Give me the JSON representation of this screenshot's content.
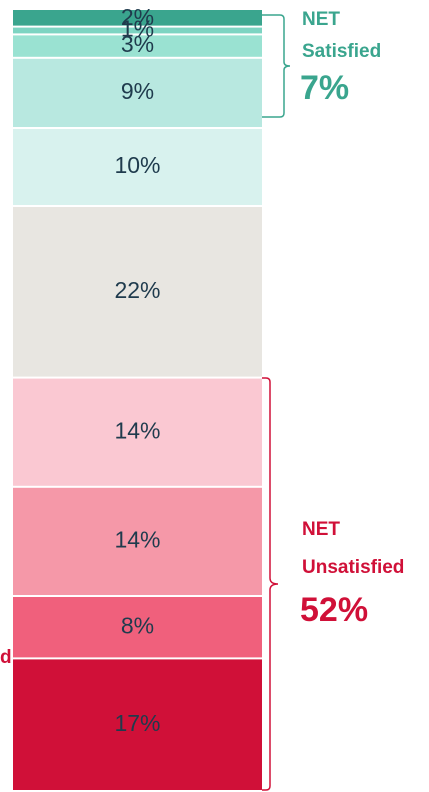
{
  "chart_data": {
    "type": "stacked_bar",
    "categories": [
      "17%",
      "8%",
      "14%",
      "14%",
      "22%",
      "10%",
      "9%",
      "3%",
      "1%",
      "2%"
    ],
    "values": [
      17,
      8,
      14,
      14,
      22,
      10,
      9,
      3,
      1,
      2
    ],
    "value_labels": [
      "17%",
      "8%",
      "14%",
      "14%",
      "22%",
      "10%",
      "9%",
      "3%",
      "1%",
      "2%"
    ],
    "colors": [
      "#d01038",
      "#f0607c",
      "#f598a8",
      "#fac8d2",
      "#e8e6e1",
      "#d8f2ee",
      "#b8e8e0",
      "#9ae2d2",
      "#7dd4c2",
      "#3aa58e"
    ],
    "annotations": {
      "satisfied": {
        "heading": "NET",
        "name": "Satisfied",
        "value": "7%",
        "color": "#3aa58e"
      },
      "unsatisfied": {
        "heading": "NET",
        "name": "Unsatisfied",
        "value": "52%",
        "color": "#d01038"
      },
      "left_fragment": "d"
    }
  }
}
